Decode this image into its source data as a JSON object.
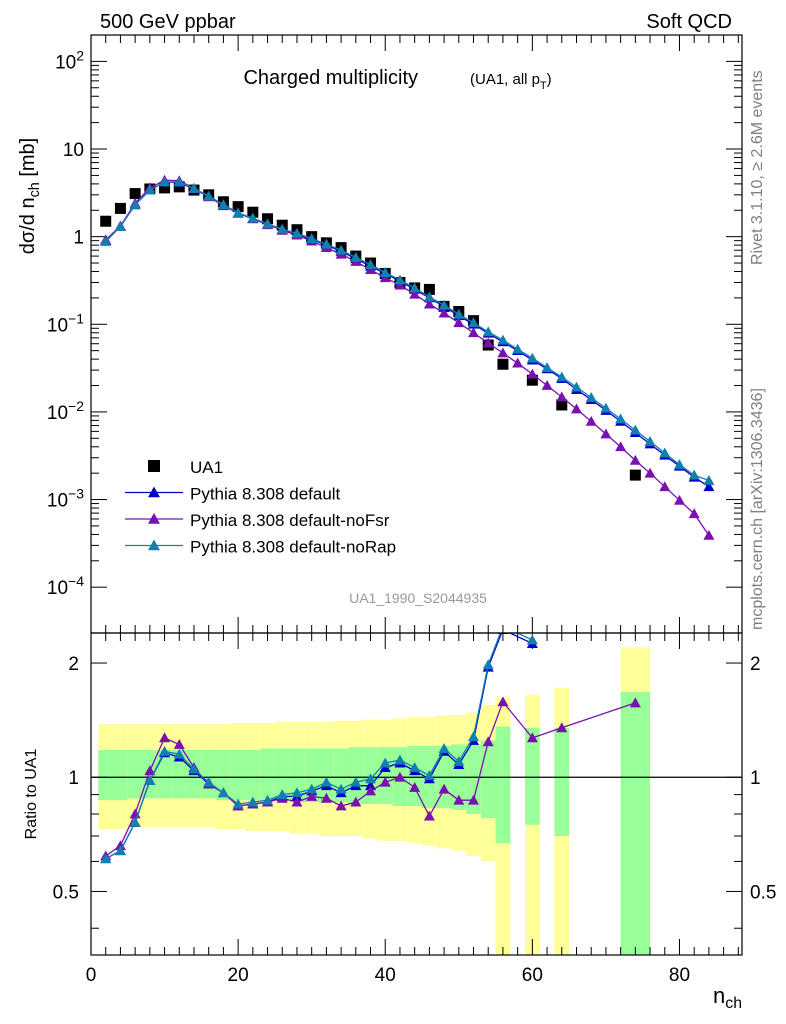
{
  "header": {
    "left": "500 GeV ppbar",
    "right": "Soft QCD",
    "side_top": "Rivet 3.1.10, ≥ 2.6M events",
    "side_bottom": "mcplots.cern.ch [arXiv:1306.3436]"
  },
  "chart_data": [
    {
      "type": "scatter",
      "title": "Charged multiplicity",
      "subtitle": "(UA1, all p_T)",
      "analysis_id": "UA1_1990_S2044935",
      "ylabel": "dσ/d n_ch [mb]",
      "xlabel": "n_ch",
      "xlim": [
        0,
        88.5
      ],
      "ylim": [
        3e-05,
        200
      ],
      "yscale": "log",
      "yticks": [
        "10^-4",
        "10^-3",
        "10^-2",
        "10^-1",
        "1",
        "10",
        "10^2"
      ],
      "legend_position": "bottom-left",
      "series": [
        {
          "name": "UA1",
          "style": "marker",
          "color": "#000000",
          "marker": "square",
          "x": [
            2,
            4,
            6,
            8,
            10,
            12,
            14,
            16,
            18,
            20,
            22,
            24,
            26,
            28,
            30,
            32,
            34,
            36,
            38,
            40,
            42,
            44,
            46,
            48,
            50,
            52,
            54,
            56,
            60,
            64,
            74
          ],
          "y": [
            1.5,
            2.1,
            3.1,
            3.5,
            3.6,
            3.7,
            3.4,
            3.0,
            2.5,
            2.2,
            1.9,
            1.6,
            1.35,
            1.2,
            1.0,
            0.85,
            0.75,
            0.6,
            0.5,
            0.38,
            0.3,
            0.26,
            0.25,
            0.16,
            0.14,
            0.11,
            0.058,
            0.035,
            0.023,
            0.012,
            0.0019
          ]
        },
        {
          "name": "Pythia 8.308 default",
          "style": "line",
          "color": "#0000cc",
          "marker": "triangle",
          "x": [
            2,
            4,
            6,
            8,
            10,
            12,
            14,
            16,
            18,
            20,
            22,
            24,
            26,
            28,
            30,
            32,
            34,
            36,
            38,
            40,
            42,
            44,
            46,
            48,
            50,
            52,
            54,
            56,
            58,
            60,
            62,
            64,
            66,
            68,
            70,
            72,
            74,
            76,
            78,
            80,
            82,
            84
          ],
          "y": [
            0.9,
            1.32,
            2.32,
            3.4,
            4.2,
            4.15,
            3.5,
            2.85,
            2.3,
            1.85,
            1.6,
            1.38,
            1.2,
            1.07,
            0.93,
            0.8,
            0.68,
            0.56,
            0.46,
            0.38,
            0.31,
            0.25,
            0.2,
            0.16,
            0.125,
            0.1,
            0.079,
            0.063,
            0.05,
            0.039,
            0.031,
            0.024,
            0.018,
            0.0138,
            0.0104,
            0.0078,
            0.0058,
            0.0043,
            0.0032,
            0.0024,
            0.0018,
            0.0014
          ]
        },
        {
          "name": "Pythia 8.308 default-noFsr",
          "style": "line",
          "color": "#7a10b0",
          "marker": "triangle",
          "x": [
            2,
            4,
            6,
            8,
            10,
            12,
            14,
            16,
            18,
            20,
            22,
            24,
            26,
            28,
            30,
            32,
            34,
            36,
            38,
            40,
            42,
            44,
            46,
            48,
            50,
            52,
            54,
            56,
            58,
            60,
            62,
            64,
            66,
            68,
            70,
            72,
            74,
            76,
            78,
            80,
            82,
            84
          ],
          "y": [
            0.92,
            1.32,
            2.4,
            3.6,
            4.4,
            4.35,
            3.55,
            2.85,
            2.25,
            1.85,
            1.6,
            1.37,
            1.18,
            1.04,
            0.89,
            0.75,
            0.63,
            0.52,
            0.42,
            0.34,
            0.28,
            0.22,
            0.17,
            0.134,
            0.104,
            0.08,
            0.061,
            0.047,
            0.036,
            0.027,
            0.02,
            0.0148,
            0.0108,
            0.0078,
            0.0056,
            0.004,
            0.0028,
            0.002,
            0.0014,
            0.00098,
            0.00069,
            0.00039
          ]
        },
        {
          "name": "Pythia 8.308 default-noRap",
          "style": "line",
          "color": "#1080b0",
          "marker": "triangle",
          "x": [
            2,
            4,
            6,
            8,
            10,
            12,
            14,
            16,
            18,
            20,
            22,
            24,
            26,
            28,
            30,
            32,
            34,
            36,
            38,
            40,
            42,
            44,
            46,
            48,
            50,
            52,
            54,
            56,
            58,
            60,
            62,
            64,
            66,
            68,
            70,
            72,
            74,
            76,
            78,
            80,
            82,
            84
          ],
          "y": [
            0.88,
            1.3,
            2.3,
            3.4,
            4.2,
            4.2,
            3.55,
            2.9,
            2.32,
            1.87,
            1.63,
            1.4,
            1.22,
            1.09,
            0.95,
            0.82,
            0.7,
            0.58,
            0.48,
            0.39,
            0.32,
            0.26,
            0.205,
            0.165,
            0.13,
            0.104,
            0.082,
            0.066,
            0.052,
            0.041,
            0.032,
            0.025,
            0.0192,
            0.0146,
            0.011,
            0.0083,
            0.0062,
            0.0046,
            0.0034,
            0.0025,
            0.0019,
            0.00165
          ]
        }
      ]
    },
    {
      "type": "line",
      "ylabel": "Ratio to UA1",
      "xlabel": "n_ch",
      "xlim": [
        0,
        88.5
      ],
      "ylim": [
        0.34,
        2.4
      ],
      "yscale": "log",
      "xticks": [
        0,
        20,
        40,
        60,
        80
      ],
      "yticks": [
        "0.5",
        "1",
        "2"
      ],
      "reference_line": 1,
      "bands": {
        "bins": [
          [
            1,
            3
          ],
          [
            3,
            5
          ],
          [
            5,
            7
          ],
          [
            7,
            9
          ],
          [
            9,
            11
          ],
          [
            11,
            13
          ],
          [
            13,
            15
          ],
          [
            15,
            17
          ],
          [
            17,
            19
          ],
          [
            19,
            21
          ],
          [
            21,
            23
          ],
          [
            23,
            25
          ],
          [
            25,
            27
          ],
          [
            27,
            29
          ],
          [
            29,
            31
          ],
          [
            31,
            33
          ],
          [
            33,
            35
          ],
          [
            35,
            37
          ],
          [
            37,
            39
          ],
          [
            39,
            41
          ],
          [
            41,
            43
          ],
          [
            43,
            45
          ],
          [
            45,
            47
          ],
          [
            47,
            49
          ],
          [
            49,
            51
          ],
          [
            51,
            53
          ],
          [
            53,
            55
          ],
          [
            55,
            57
          ],
          [
            59,
            61
          ],
          [
            63,
            65
          ],
          [
            72,
            76
          ]
        ],
        "inner": [
          [
            0.87,
            1.18
          ],
          [
            0.87,
            1.18
          ],
          [
            0.88,
            1.18
          ],
          [
            0.88,
            1.18
          ],
          [
            0.88,
            1.18
          ],
          [
            0.88,
            1.18
          ],
          [
            0.88,
            1.18
          ],
          [
            0.88,
            1.18
          ],
          [
            0.87,
            1.18
          ],
          [
            0.87,
            1.18
          ],
          [
            0.87,
            1.18
          ],
          [
            0.87,
            1.19
          ],
          [
            0.87,
            1.19
          ],
          [
            0.86,
            1.19
          ],
          [
            0.86,
            1.19
          ],
          [
            0.86,
            1.19
          ],
          [
            0.86,
            1.19
          ],
          [
            0.85,
            1.2
          ],
          [
            0.85,
            1.2
          ],
          [
            0.85,
            1.2
          ],
          [
            0.84,
            1.2
          ],
          [
            0.84,
            1.21
          ],
          [
            0.83,
            1.21
          ],
          [
            0.83,
            1.21
          ],
          [
            0.82,
            1.22
          ],
          [
            0.8,
            1.22
          ],
          [
            0.78,
            1.25
          ],
          [
            0.67,
            1.36
          ],
          [
            0.75,
            1.35
          ],
          [
            0.7,
            1.35
          ],
          [
            0.3,
            1.68
          ]
        ],
        "outer": [
          [
            0.73,
            1.38
          ],
          [
            0.73,
            1.38
          ],
          [
            0.74,
            1.38
          ],
          [
            0.74,
            1.38
          ],
          [
            0.74,
            1.38
          ],
          [
            0.74,
            1.38
          ],
          [
            0.74,
            1.38
          ],
          [
            0.74,
            1.38
          ],
          [
            0.73,
            1.38
          ],
          [
            0.73,
            1.39
          ],
          [
            0.72,
            1.39
          ],
          [
            0.72,
            1.39
          ],
          [
            0.72,
            1.4
          ],
          [
            0.71,
            1.4
          ],
          [
            0.71,
            1.4
          ],
          [
            0.7,
            1.4
          ],
          [
            0.7,
            1.41
          ],
          [
            0.7,
            1.41
          ],
          [
            0.69,
            1.42
          ],
          [
            0.68,
            1.42
          ],
          [
            0.68,
            1.43
          ],
          [
            0.67,
            1.44
          ],
          [
            0.66,
            1.44
          ],
          [
            0.65,
            1.45
          ],
          [
            0.64,
            1.46
          ],
          [
            0.62,
            1.48
          ],
          [
            0.6,
            1.55
          ],
          [
            0.3,
            1.62
          ],
          [
            0.3,
            1.65
          ],
          [
            0.3,
            1.72
          ],
          [
            0.3,
            2.2
          ]
        ],
        "inner_color": "#99ff99",
        "outer_color": "#ffff99"
      },
      "series": [
        {
          "name": "Pythia 8.308 default",
          "color": "#0000cc",
          "x": [
            2,
            4,
            6,
            8,
            10,
            12,
            14,
            16,
            18,
            20,
            22,
            24,
            26,
            28,
            30,
            32,
            34,
            36,
            38,
            40,
            42,
            44,
            46,
            48,
            50,
            52,
            54,
            56,
            60
          ],
          "y": [
            0.61,
            0.64,
            0.76,
            0.98,
            1.16,
            1.13,
            1.04,
            0.96,
            0.91,
            0.84,
            0.85,
            0.86,
            0.89,
            0.89,
            0.92,
            0.95,
            0.91,
            0.95,
            0.95,
            1.06,
            1.09,
            1.04,
            0.99,
            1.17,
            1.08,
            1.25,
            1.95,
            2.45,
            2.25
          ]
        },
        {
          "name": "Pythia 8.308 default-noFsr",
          "color": "#7a10b0",
          "x": [
            2,
            4,
            6,
            8,
            10,
            12,
            14,
            16,
            18,
            20,
            22,
            24,
            26,
            28,
            30,
            32,
            34,
            36,
            38,
            40,
            42,
            44,
            46,
            48,
            50,
            52,
            54,
            56,
            60,
            64,
            74
          ],
          "y": [
            0.62,
            0.66,
            0.8,
            1.04,
            1.27,
            1.22,
            1.06,
            0.96,
            0.91,
            0.84,
            0.85,
            0.86,
            0.88,
            0.86,
            0.89,
            0.88,
            0.84,
            0.86,
            0.92,
            0.97,
            1.0,
            0.94,
            0.79,
            0.93,
            0.87,
            0.87,
            1.24,
            1.58,
            1.27,
            1.35,
            1.57
          ]
        },
        {
          "name": "Pythia 8.308 default-noRap",
          "color": "#1080b0",
          "x": [
            2,
            4,
            6,
            8,
            10,
            12,
            14,
            16,
            18,
            20,
            22,
            24,
            26,
            28,
            30,
            32,
            34,
            36,
            38,
            40,
            42,
            44,
            46,
            48,
            50,
            52,
            54,
            56,
            60
          ],
          "y": [
            0.61,
            0.64,
            0.76,
            0.98,
            1.17,
            1.15,
            1.05,
            0.97,
            0.91,
            0.85,
            0.86,
            0.87,
            0.9,
            0.91,
            0.93,
            0.97,
            0.93,
            0.97,
            0.99,
            1.09,
            1.11,
            1.06,
            1.01,
            1.19,
            1.1,
            1.28,
            1.98,
            2.5,
            2.3
          ]
        }
      ]
    }
  ]
}
